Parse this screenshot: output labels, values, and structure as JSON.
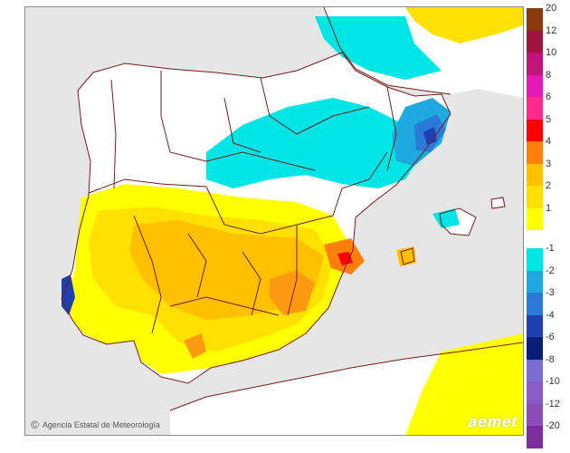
{
  "credit": {
    "icon": "copyright-icon",
    "text": "Agencia Estatal de Meteorología"
  },
  "watermark": "aemet",
  "legend": {
    "positive": [
      {
        "label": "20",
        "color": "#8b3a0f"
      },
      {
        "label": "12",
        "color": "#a0153e"
      },
      {
        "label": "10",
        "color": "#c0167a"
      },
      {
        "label": "8",
        "color": "#e21bb4"
      },
      {
        "label": "6",
        "color": "#ff2b8a"
      },
      {
        "label": "5",
        "color": "#ff0000"
      },
      {
        "label": "4",
        "color": "#ff7f0a"
      },
      {
        "label": "3",
        "color": "#ffc000"
      },
      {
        "label": "2",
        "color": "#ffe000"
      },
      {
        "label": "1",
        "color": "#ffff00"
      }
    ],
    "negative": [
      {
        "label": "-1",
        "color": "#00e5e5"
      },
      {
        "label": "-2",
        "color": "#1eaae0"
      },
      {
        "label": "-3",
        "color": "#2b7ad8"
      },
      {
        "label": "-4",
        "color": "#1d3fb0"
      },
      {
        "label": "-6",
        "color": "#0a1e78"
      },
      {
        "label": "-8",
        "color": "#7d6ccf"
      },
      {
        "label": "-10",
        "color": "#8a5bc7"
      },
      {
        "label": "-12",
        "color": "#8a4cb5"
      },
      {
        "label": "-20",
        "color": "#7a2f9a"
      }
    ]
  },
  "map_colors": {
    "sea": "#e6e6e6",
    "land": "#ffffff",
    "border": "#7a1a1a"
  }
}
